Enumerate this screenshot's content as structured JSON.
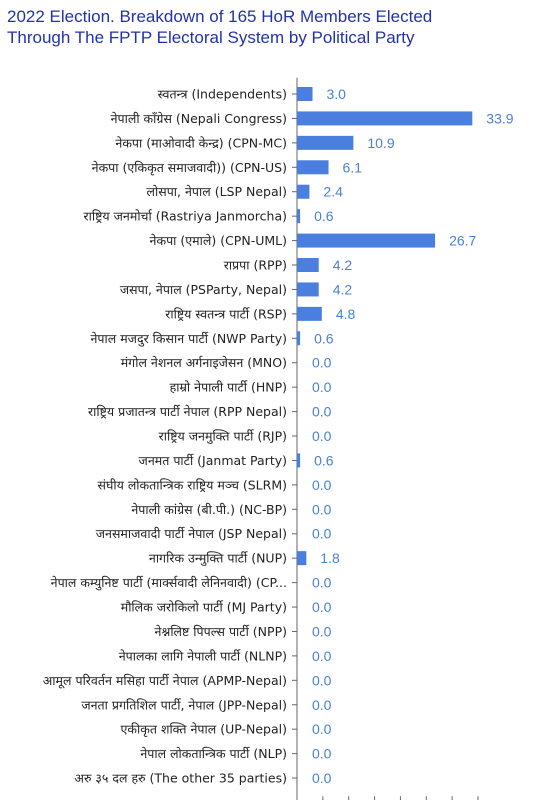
{
  "chart_data": {
    "type": "bar",
    "orientation": "horizontal",
    "title_lines": [
      "2022 Election. Breakdown of 165 HoR Members Elected",
      "Through The FPTP Electoral System by Political Party"
    ],
    "xlabel": "",
    "ylabel": "",
    "xlim": [
      0,
      35
    ],
    "grid": false,
    "legend": "none",
    "bar_color": "#4a7fe0",
    "label_color": "#4a80d6",
    "categories": [
      "स्वतन्त्र (Independents)",
      "नेपाली काँग्रेस (Nepali Congress)",
      "नेकपा (माओवादी केन्द्र) (CPN-MC)",
      "नेकपा (एकिकृत समाजवादी)) (CPN-US)",
      "लोसपा, नेपाल (LSP Nepal)",
      "राष्ट्रिय जनमोर्चा (Rastriya Janmorcha)",
      "नेकपा (एमाले) (CPN-UML)",
      "राप्रपा (RPP)",
      "जसपा, नेपाल (PSParty, Nepal)",
      "राष्ट्रिय स्वतन्त्र पार्टी (RSP)",
      "नेपाल मजदुर किसान पार्टी (NWP Party)",
      "मंगोल नेशनल अर्गनाइजेसन (MNO)",
      "हाम्रो नेपाली पार्टी (HNP)",
      "राष्ट्रिय प्रजातन्त्र पार्टी नेपाल (RPP Nepal)",
      "राष्ट्रिय जनमुक्ति पार्टी (RJP)",
      "जनमत पार्टी (Janmat Party)",
      "संघीय लोकतान्त्रिक राष्ट्रिय मञ्च (SLRM)",
      "नेपाली कांग्रेस (बी.पी.) (NC-BP)",
      "जनसमाजवादी पार्टी नेपाल (JSP Nepal)",
      "नागरिक उन्मुक्ति पार्टी (NUP)",
      "नेपाल कम्युनिष्ट पार्टी (मार्क्सवादी लेनिनवादी) (CP...",
      "मौलिक जरोकिलो पार्टी (MJ Party)",
      "नेश्नलिष्ट पिपल्स पार्टी (NPP)",
      "नेपालका लागि नेपाली पार्टी (NLNP)",
      "आमूल परिवर्तन मसिहा पार्टी नेपाल (APMP-Nepal)",
      "जनता प्रगतिशिल पार्टी, नेपाल (JPP-Nepal)",
      "एकीकृत शक्ति नेपाल (UP-Nepal)",
      "नेपाल लोकतान्त्रिक पार्टी (NLP)",
      "अरु ३५ दल हरु (The other 35 parties)"
    ],
    "values": [
      3.0,
      33.9,
      10.9,
      6.1,
      2.4,
      0.6,
      26.7,
      4.2,
      4.2,
      4.8,
      0.6,
      0.0,
      0.0,
      0.0,
      0.0,
      0.6,
      0.0,
      0.0,
      0.0,
      1.8,
      0.0,
      0.0,
      0.0,
      0.0,
      0.0,
      0.0,
      0.0,
      0.0,
      0.0
    ],
    "value_labels": [
      "3.0",
      "33.9",
      "10.9",
      "6.1",
      "2.4",
      "0.6",
      "26.7",
      "4.2",
      "4.2",
      "4.8",
      "0.6",
      "0.0",
      "0.0",
      "0.0",
      "0.0",
      "0.6",
      "0.0",
      "0.0",
      "0.0",
      "1.8",
      "0.0",
      "0.0",
      "0.0",
      "0.0",
      "0.0",
      "0.0",
      "0.0",
      "0.0",
      "0.0"
    ]
  }
}
